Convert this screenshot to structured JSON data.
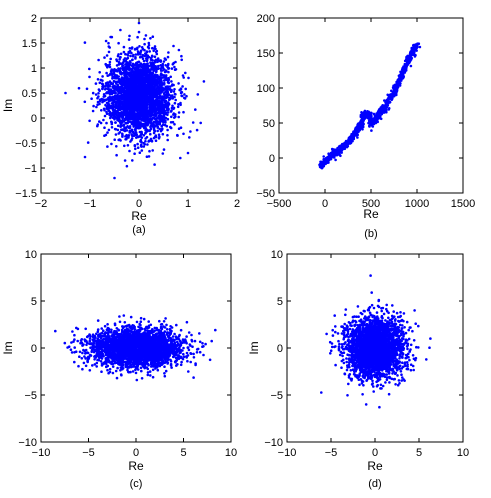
{
  "chart_data": [
    {
      "type": "scatter",
      "caption": "(a)",
      "xlabel": "Re",
      "ylabel": "Im",
      "xlim": [
        -2,
        2
      ],
      "ylim": [
        -1.5,
        2
      ],
      "xticks": [
        "−2",
        "−1",
        "0",
        "1",
        "2"
      ],
      "yticks": [
        "−1.5",
        "−1",
        "−0.5",
        "0",
        "0.5",
        "1",
        "1.5",
        "2"
      ],
      "grid": false,
      "color": "#0000ff",
      "series": [
        {
          "distribution": "gaussian",
          "count": 3000,
          "mean": [
            0.0,
            0.45
          ],
          "std": [
            0.35,
            0.4
          ],
          "points": [
            [
              -0.3,
              0.8
            ],
            [
              0.5,
              0.2
            ],
            [
              -1.5,
              0.5
            ],
            [
              0.0,
              1.9
            ],
            [
              -0.5,
              -1.2
            ],
            [
              1.0,
              -0.7
            ],
            [
              0.2,
              1.5
            ]
          ]
        }
      ]
    },
    {
      "type": "scatter",
      "caption": "(b)",
      "xlabel": "Re",
      "ylabel": "",
      "xlim": [
        -500,
        1500
      ],
      "ylim": [
        -50,
        200
      ],
      "xticks": [
        "−500",
        "0",
        "500",
        "1000",
        "1500"
      ],
      "yticks": [
        "−50",
        "0",
        "50",
        "100",
        "150",
        "200"
      ],
      "grid": false,
      "color": "#0000ff",
      "series": [
        {
          "distribution": "trajectory",
          "points": [
            [
              -50,
              -12
            ],
            [
              0,
              -5
            ],
            [
              60,
              2
            ],
            [
              110,
              8
            ],
            [
              160,
              10
            ],
            [
              200,
              18
            ],
            [
              250,
              22
            ],
            [
              300,
              30
            ],
            [
              340,
              38
            ],
            [
              380,
              45
            ],
            [
              400,
              50
            ],
            [
              420,
              62
            ],
            [
              440,
              60
            ],
            [
              480,
              63
            ],
            [
              500,
              48
            ],
            [
              540,
              55
            ],
            [
              580,
              60
            ],
            [
              620,
              70
            ],
            [
              650,
              70
            ],
            [
              700,
              85
            ],
            [
              740,
              92
            ],
            [
              780,
              102
            ],
            [
              820,
              115
            ],
            [
              860,
              125
            ],
            [
              900,
              138
            ],
            [
              940,
              148
            ],
            [
              970,
              155
            ],
            [
              1000,
              160
            ]
          ]
        }
      ]
    },
    {
      "type": "scatter",
      "caption": "(c)",
      "xlabel": "Re",
      "ylabel": "Im",
      "xlim": [
        -10,
        10
      ],
      "ylim": [
        -10,
        10
      ],
      "xticks": [
        "−10",
        "−5",
        "0",
        "5",
        "10"
      ],
      "yticks": [
        "−10",
        "−5",
        "0",
        "5",
        "10"
      ],
      "grid": false,
      "color": "#0000ff",
      "series": [
        {
          "distribution": "gaussian",
          "count": 3000,
          "mean": [
            0.0,
            0.0
          ],
          "std": [
            2.4,
            1.0
          ],
          "points": [
            [
              -8.5,
              1.8
            ],
            [
              7.0,
              0.5
            ],
            [
              -6.5,
              -1.5
            ],
            [
              5.5,
              -2.5
            ],
            [
              0.5,
              2.8
            ],
            [
              -2.0,
              -3.2
            ]
          ]
        }
      ]
    },
    {
      "type": "scatter",
      "caption": "(d)",
      "xlabel": "Re",
      "ylabel": "Im",
      "xlim": [
        -10,
        10
      ],
      "ylim": [
        -10,
        10
      ],
      "xticks": [
        "−10",
        "−5",
        "0",
        "5",
        "10"
      ],
      "yticks": [
        "−10",
        "−5",
        "0",
        "5",
        "10"
      ],
      "grid": false,
      "color": "#0000ff",
      "series": [
        {
          "distribution": "gaussian",
          "count": 3000,
          "mean": [
            0.0,
            0.0
          ],
          "std": [
            1.6,
            1.6
          ],
          "points": [
            [
              -0.5,
              7.7
            ],
            [
              -5.5,
              1.5
            ],
            [
              6.3,
              1.0
            ],
            [
              0.5,
              -6.3
            ],
            [
              -1.0,
              -6.0
            ],
            [
              4.5,
              4.0
            ]
          ]
        }
      ]
    }
  ]
}
